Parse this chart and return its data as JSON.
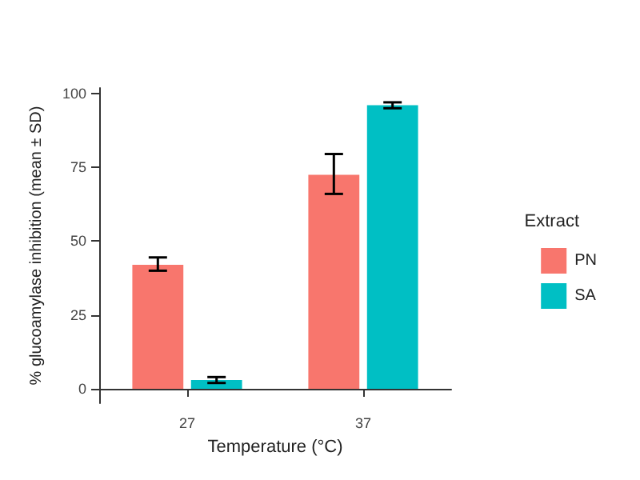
{
  "chart_data": {
    "type": "bar",
    "xlabel": "Temperature (°C)",
    "ylabel": "% glucoamylase inhibition (mean ± SD)",
    "legend_title": "Extract",
    "categories": [
      "27",
      "37"
    ],
    "series": [
      {
        "name": "PN",
        "color": "#f8766d",
        "values": [
          42,
          72.5
        ],
        "errors": [
          [
            40,
            44.5
          ],
          [
            66,
            79.5
          ]
        ]
      },
      {
        "name": "SA",
        "color": "#00bfc4",
        "values": [
          3,
          96
        ],
        "errors": [
          [
            2,
            4
          ],
          [
            95,
            97
          ]
        ]
      }
    ],
    "ylim": [
      -4.85,
      101.85
    ],
    "yticks": [
      0,
      25,
      50,
      75,
      100
    ],
    "grid": false,
    "legend": "right"
  }
}
